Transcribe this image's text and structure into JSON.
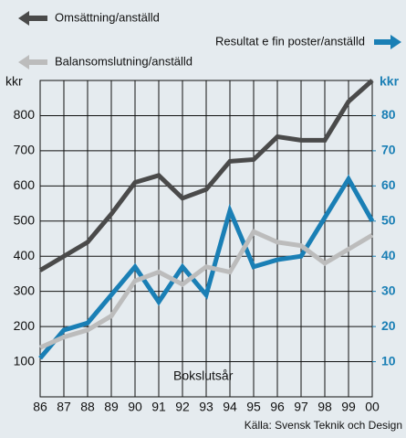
{
  "chart_data": {
    "type": "line",
    "categories": [
      "86",
      "87",
      "88",
      "89",
      "90",
      "91",
      "92",
      "93",
      "94",
      "95",
      "96",
      "97",
      "98",
      "99",
      "00"
    ],
    "series": [
      {
        "name": "Omsättning/anställd",
        "color": "#4a4a4a",
        "values": [
          360,
          400,
          440,
          520,
          610,
          630,
          565,
          590,
          670,
          675,
          740,
          730,
          730,
          840,
          900
        ]
      },
      {
        "name": "Resultat e fin poster/anställd",
        "color": "#1a7fb5",
        "axis": "y2",
        "values": [
          11,
          19,
          21,
          29,
          37,
          27,
          37,
          29,
          53,
          37,
          39,
          40,
          51,
          62,
          50
        ]
      },
      {
        "name": "Balansomslutning/anställd",
        "color": "#bcbcbc",
        "values": [
          140,
          170,
          190,
          230,
          330,
          355,
          320,
          370,
          355,
          470,
          440,
          430,
          380,
          420,
          460
        ]
      }
    ],
    "ylabel": "kkr",
    "y2label": "kkr",
    "xlabel": "Bokslutsår",
    "ylim": [
      0,
      900
    ],
    "yticks": [
      100,
      200,
      300,
      400,
      500,
      600,
      700,
      800
    ],
    "y2lim": [
      0,
      90
    ],
    "y2ticks": [
      10,
      20,
      30,
      40,
      50,
      60,
      70,
      80
    ],
    "grid": true,
    "source": "Källa: Svensk Teknik och Design"
  }
}
